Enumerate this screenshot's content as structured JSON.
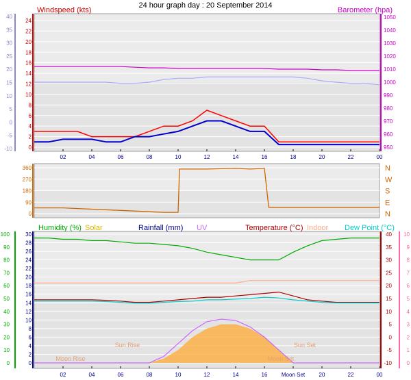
{
  "title": "24 hour graph day : 20 September 2014",
  "colors": {
    "wind": "#cc0000",
    "gust_red": "#ff0000",
    "wind_avg": "#0000cc",
    "wind_axis": "#8888cc",
    "baro": "#cc00cc",
    "baro_line": "#aaaaff",
    "dir": "#cc6600",
    "humidity": "#00aa00",
    "solar": "#d8b800",
    "rain": "#000088",
    "uv": "#cc66ff",
    "temp": "#aa0000",
    "indoor": "#ffaa88",
    "dew": "#00cccc",
    "uv_axis": "#ff66aa",
    "sun_fill": "#ffaa33",
    "night": "#dddddd"
  },
  "chart_data": [
    {
      "type": "line",
      "name": "wind-baro",
      "title_left": "Windspeed (kts)",
      "title_right": "Barometer (hpa)",
      "left_ticks": [
        "24",
        "22",
        "20",
        "18",
        "16",
        "14",
        "12",
        "10",
        "8",
        "6",
        "4",
        "2",
        "0"
      ],
      "left_outer_ticks": [
        "40",
        "35",
        "30",
        "25",
        "20",
        "15",
        "10",
        "5",
        "0",
        "-5",
        "-10"
      ],
      "right_ticks": [
        "1050",
        "1040",
        "1030",
        "1020",
        "1010",
        "1000",
        "990",
        "980",
        "970",
        "960",
        "950"
      ],
      "x_ticks": [
        "02",
        "04",
        "06",
        "08",
        "10",
        "12",
        "14",
        "16",
        "18",
        "20",
        "22",
        "00"
      ],
      "x": [
        0,
        1,
        2,
        3,
        4,
        5,
        6,
        7,
        8,
        9,
        10,
        11,
        12,
        13,
        14,
        15,
        16,
        17,
        18,
        19,
        20,
        21,
        22,
        23,
        24
      ],
      "series": [
        {
          "key": "gust",
          "values": [
            3,
            3,
            3,
            3,
            2,
            2,
            2,
            2,
            3,
            4,
            4,
            5,
            7,
            6,
            5,
            4,
            4,
            1,
            1,
            1,
            1,
            1,
            1,
            1,
            1
          ]
        },
        {
          "key": "avg",
          "values": [
            1,
            1,
            1.5,
            1.5,
            1.5,
            1,
            1,
            2,
            2,
            2.5,
            3,
            4,
            5,
            5,
            4,
            3,
            3,
            0.5,
            0.5,
            0.5,
            0.5,
            0.5,
            0.5,
            0.5,
            0.5
          ]
        },
        {
          "key": "baro",
          "values": [
            1012,
            1012,
            1012,
            1012,
            1012,
            1012,
            1012,
            1011.5,
            1011,
            1011,
            1010.5,
            1010.5,
            1010.5,
            1010.5,
            1010.5,
            1010.5,
            1010.5,
            1010,
            1010,
            1010,
            1009.5,
            1009.5,
            1009,
            1009,
            1009
          ]
        },
        {
          "key": "baro2",
          "values": [
            1000,
            1000,
            1000,
            1000,
            1000,
            1000,
            999,
            999,
            1000,
            1002,
            1003,
            1003,
            1004,
            1004,
            1004,
            1004,
            1004,
            1004,
            1004,
            1003,
            1001,
            1000,
            999,
            999,
            998
          ]
        }
      ]
    },
    {
      "type": "line",
      "name": "direction",
      "left_ticks": [
        "360",
        "270",
        "180",
        "90",
        "0"
      ],
      "right_ticks": [
        "N",
        "W",
        "S",
        "E",
        "N"
      ],
      "x": [
        0,
        2,
        4,
        6,
        8,
        9,
        10,
        10.1,
        12,
        14,
        15,
        16,
        16.3,
        18,
        20,
        22,
        24
      ],
      "values": [
        45,
        45,
        35,
        25,
        15,
        10,
        10,
        350,
        350,
        355,
        350,
        355,
        50,
        50,
        50,
        50,
        50
      ]
    },
    {
      "type": "line",
      "name": "temp-humidity",
      "legend": [
        {
          "key": "humidity",
          "label": "Humidity (%)"
        },
        {
          "key": "solar",
          "label": "Solar"
        },
        {
          "key": "rain",
          "label": "Rainfall (mm)"
        },
        {
          "key": "uv",
          "label": "UV"
        },
        {
          "key": "temp",
          "label": "Temperature (°C)"
        },
        {
          "key": "indoor",
          "label": "Indoor"
        },
        {
          "key": "dew",
          "label": "Dew Point (°C)"
        }
      ],
      "left_outer_ticks": [
        "100",
        "90",
        "80",
        "70",
        "60",
        "50",
        "40",
        "30",
        "20",
        "10",
        "0"
      ],
      "left_ticks": [
        "30",
        "28",
        "26",
        "24",
        "22",
        "20",
        "18",
        "16",
        "14",
        "12",
        "10",
        "8",
        "6",
        "4",
        "2",
        "0"
      ],
      "right_ticks": [
        "40",
        "35",
        "30",
        "25",
        "20",
        "15",
        "10",
        "5",
        "0",
        "-5",
        "-10"
      ],
      "right_outer_ticks": [
        "10",
        "9",
        "8",
        "7",
        "6",
        "5",
        "4",
        "3",
        "2",
        "1",
        "0"
      ],
      "x_ticks": [
        "02",
        "04",
        "06",
        "08",
        "10",
        "12",
        "14",
        "16",
        "Moon Set",
        "20",
        "22",
        "00"
      ],
      "annotations": [
        "Moon Rise",
        "Sun Rise",
        "Sun Set",
        "Moon Set"
      ],
      "x": [
        0,
        1,
        2,
        3,
        4,
        5,
        6,
        7,
        8,
        9,
        10,
        11,
        12,
        13,
        14,
        15,
        16,
        17,
        18,
        19,
        20,
        21,
        22,
        23,
        24
      ],
      "series": [
        {
          "key": "humidity",
          "values": [
            97,
            97,
            96,
            96,
            95,
            95,
            94,
            93,
            93,
            92,
            91,
            89,
            86,
            84,
            82,
            80,
            80,
            80,
            86,
            91,
            95,
            96,
            97,
            97,
            97
          ]
        },
        {
          "key": "indoor",
          "values": [
            21,
            21,
            21,
            21,
            21,
            21,
            21,
            21,
            21,
            21,
            21,
            21,
            21,
            21,
            21,
            22,
            22,
            22,
            22,
            22,
            22,
            22,
            22,
            22,
            22
          ]
        },
        {
          "key": "temp",
          "values": [
            14.5,
            14.5,
            14.5,
            14.5,
            14.5,
            14.3,
            14,
            13.5,
            13.5,
            14,
            14.5,
            15,
            15.5,
            15.5,
            16,
            16.5,
            17,
            17.5,
            16,
            14.5,
            14,
            13.5,
            13.5,
            13.5,
            13.5
          ]
        },
        {
          "key": "dew",
          "values": [
            14,
            14,
            14,
            14,
            14,
            13.8,
            13.5,
            13.2,
            13.2,
            13.5,
            13.8,
            14,
            14.5,
            14.5,
            14.8,
            15,
            15.5,
            15.2,
            14.5,
            14,
            13.5,
            13.3,
            13.3,
            13.3,
            13.3
          ]
        },
        {
          "key": "solar",
          "values": [
            0,
            0,
            0,
            0,
            0,
            0,
            0,
            0,
            0,
            1,
            3,
            6,
            8,
            9,
            9,
            8,
            6,
            3,
            0,
            0,
            0,
            0,
            0,
            0,
            0
          ]
        },
        {
          "key": "uv",
          "values": [
            0,
            0,
            0,
            0,
            0,
            0,
            0,
            0,
            0,
            0.5,
            1.5,
            2.5,
            3.2,
            3.4,
            3.3,
            2.8,
            2,
            1,
            0,
            0,
            0,
            0,
            0,
            0,
            0
          ]
        }
      ]
    }
  ]
}
